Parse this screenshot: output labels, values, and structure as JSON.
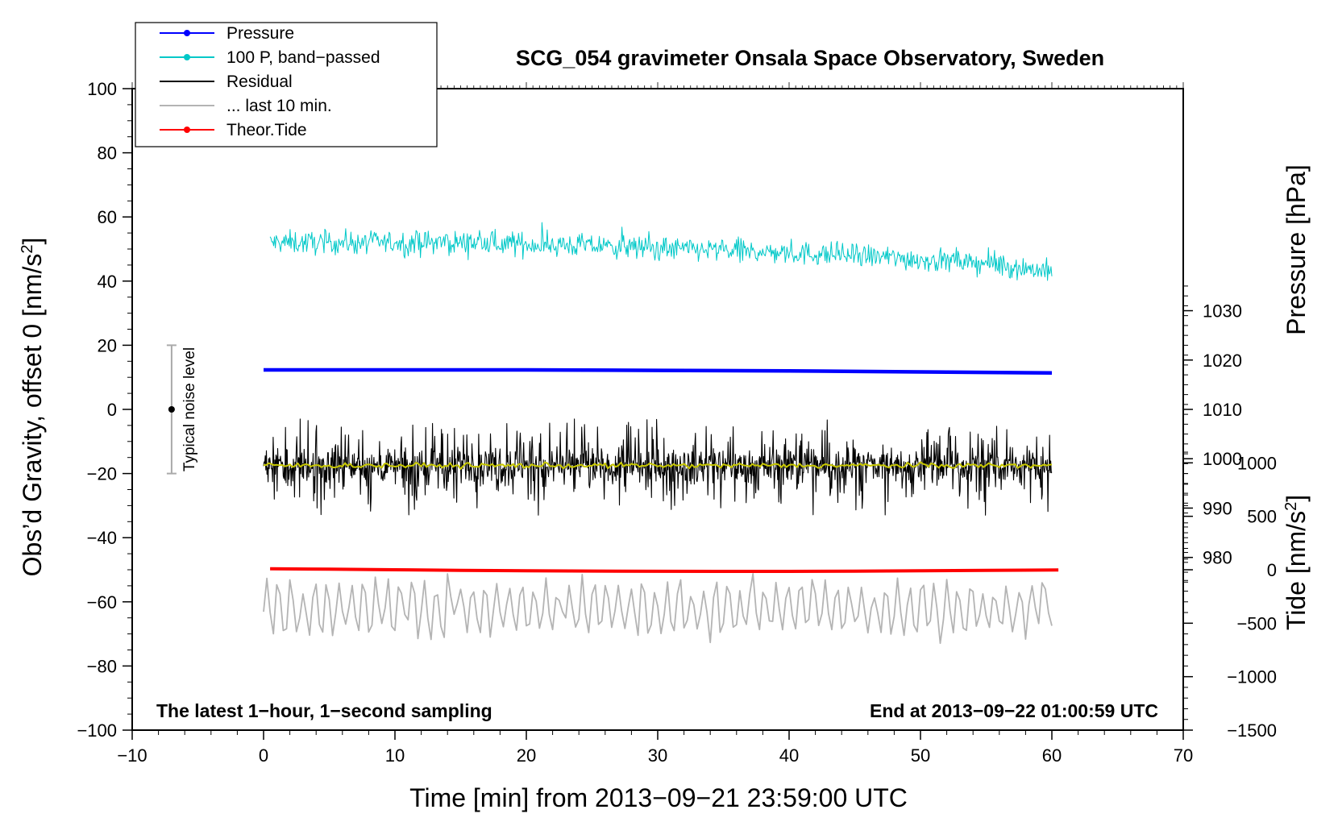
{
  "chart_data": {
    "type": "line",
    "title": "SCG_054 gravimeter Onsala Space Observatory, Sweden",
    "xlabel": "Time [min] from 2013−09−21 23:59:00 UTC",
    "ylabel": "Obs’d Gravity, offset 0 [nm/s²]",
    "ylabel_parts": {
      "main": "Obs’d Gravity, offset 0 [nm/s",
      "sup": "2",
      "tail": "]"
    },
    "xlim": [
      -10,
      70
    ],
    "ylim": [
      -100,
      100
    ],
    "x_ticks": [
      -10,
      0,
      10,
      20,
      30,
      40,
      50,
      60,
      70
    ],
    "x_tick_labels": [
      "−10",
      "0",
      "10",
      "20",
      "30",
      "40",
      "50",
      "60",
      "70"
    ],
    "y_ticks": [
      -100,
      -80,
      -60,
      -40,
      -20,
      0,
      20,
      40,
      60,
      80,
      100
    ],
    "y_tick_labels": [
      "−100",
      "−80",
      "−60",
      "−40",
      "−20",
      "0",
      "20",
      "40",
      "60",
      "80",
      "100"
    ],
    "pressure_axis": {
      "label": "Pressure [hPa]",
      "ticks": [
        980,
        990,
        1000,
        1010,
        1020,
        1030
      ],
      "tick_labels": [
        "980",
        "990",
        "1000",
        "1010",
        "1020",
        "1030"
      ],
      "range_min": 945,
      "range_max": 1075
    },
    "tide_axis": {
      "label": "Tide [nm/s²]",
      "label_parts": {
        "main": "Tide [nm/s",
        "sup": "2",
        "tail": "]"
      },
      "ticks": [
        -1500,
        -1000,
        -500,
        0,
        500,
        1000
      ],
      "tick_labels": [
        "−1500",
        "−1000",
        "−500",
        "0",
        "500",
        "1000"
      ],
      "range_min": -1500,
      "range_max": 4500
    },
    "legend": {
      "position": "top-left",
      "entries": [
        {
          "name": "Pressure",
          "color": "#0000ff",
          "marker": true
        },
        {
          "name": "100 P, band−passed",
          "color": "#00c8c8",
          "marker": true
        },
        {
          "name": "Residual",
          "color": "#000000",
          "marker": false
        },
        {
          "name": "... last 10 min.",
          "color": "#b4b4b4",
          "marker": false
        },
        {
          "name": "Theor.Tide",
          "color": "#ff0000",
          "marker": true
        }
      ]
    },
    "annotations": {
      "left_note": "The latest 1−hour, 1−second sampling",
      "right_note": "End at 2013−09−22 01:00:59 UTC",
      "noise_label": "Typical noise level"
    },
    "noise_bar": {
      "x": -7,
      "y_low": -20,
      "y_high": 20,
      "center": 0
    },
    "series": [
      {
        "name": "Pressure",
        "color": "#0000ff",
        "axis": "pressure",
        "x": [
          0,
          10,
          20,
          30,
          40,
          50,
          55,
          60
        ],
        "y": [
          1018,
          1018,
          1018,
          1017.9,
          1017.8,
          1017.6,
          1017.5,
          1017.4
        ]
      },
      {
        "name": "100 P, band−passed",
        "color": "#00c8c8",
        "axis": "gravity",
        "x_start": 0.5,
        "x_end": 60,
        "trend": [
          [
            0.5,
            52
          ],
          [
            15,
            52
          ],
          [
            25,
            51
          ],
          [
            35,
            49.5
          ],
          [
            45,
            48
          ],
          [
            55,
            45.5
          ],
          [
            60,
            43
          ]
        ],
        "noise_amp": 3,
        "n_points": 900
      },
      {
        "name": "Residual",
        "color": "#000000",
        "axis": "gravity",
        "x_start": 0,
        "x_end": 60,
        "mean": -17.5,
        "noise_amp": 6,
        "spike_amp": 12,
        "n_points": 1400
      },
      {
        "name": "Residual smoothed",
        "color": "#c8c800",
        "axis": "gravity",
        "x_start": 0,
        "x_end": 60,
        "mean": -17.5,
        "noise_amp": 1
      },
      {
        "name": "Theor.Tide",
        "color": "#ff0000",
        "axis": "tide",
        "x": [
          0.5,
          5,
          10,
          15,
          20,
          25,
          30,
          35,
          40,
          45,
          50,
          55,
          60.5
        ],
        "y": [
          10,
          5,
          0,
          -5,
          -10,
          -12,
          -14,
          -15,
          -15,
          -13,
          -10,
          -6,
          -2
        ]
      },
      {
        "name": "... last 10 min.",
        "color": "#b4b4b4",
        "axis": "gravity",
        "x_start": 0,
        "x_end": 60,
        "mean": -62,
        "noise_amp": 9,
        "n_points": 240
      }
    ]
  }
}
